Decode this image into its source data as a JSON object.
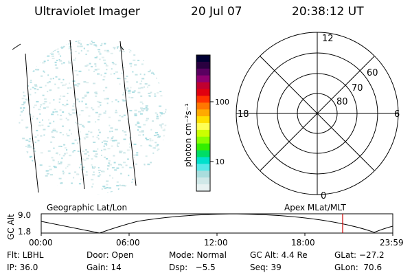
{
  "header": {
    "title": "Ultraviolet Imager",
    "date": "20 Jul 07",
    "time": "20:38:12 UT"
  },
  "colorbar": {
    "unit_label": "photon cm⁻²s⁻¹",
    "ticks": [
      "100",
      "10"
    ],
    "colors": [
      "#000033",
      "#2a0040",
      "#5a0060",
      "#900070",
      "#c00030",
      "#e00010",
      "#ff3300",
      "#ff7700",
      "#ffaa00",
      "#ffe000",
      "#ffff55",
      "#ccff00",
      "#88ff00",
      "#33ee00",
      "#00dd66",
      "#00e0cc",
      "#55e8e8",
      "#aadddd",
      "#d0e8e8",
      "#e8f2f2"
    ]
  },
  "polar": {
    "mlt_labels": {
      "top": "12",
      "left": "18",
      "right": "6",
      "bottom": "0"
    },
    "lat_labels": [
      "60",
      "70",
      "80"
    ]
  },
  "altitude_panel": {
    "left_label": "Geographic Lat/Lon",
    "right_label": "Apex MLat/MLT",
    "axis_title": "GC Alt",
    "y_top": "9.0",
    "y_bottom": "1.8",
    "x_ticks": [
      "00:00",
      "06:00",
      "12:00",
      "18:00",
      "23:59"
    ],
    "marker_color": "#cc0000"
  },
  "info": {
    "row1": {
      "filter": "Flt: LBHL",
      "door": "Door: Open",
      "mode": "Mode: Normal",
      "gc_alt": "GC Alt: 4.4 Re",
      "glat": "GLat: −27.2"
    },
    "row2": {
      "ip": "IP: 36.0",
      "gain": "Gain: 14",
      "dsp": "Dsp:   −5.5",
      "seq": "Seq: 39",
      "glon": "GLon:  70.6"
    }
  }
}
